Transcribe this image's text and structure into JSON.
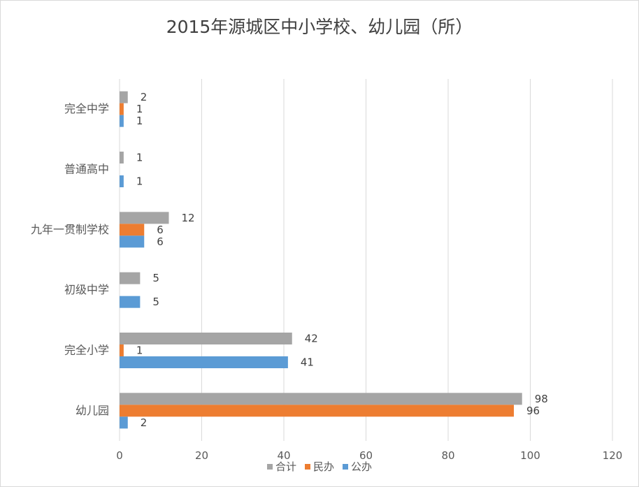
{
  "chart_data": {
    "type": "bar",
    "orientation": "horizontal",
    "title": "2015年源城区中小学校、幼儿园（所）",
    "xlabel": "",
    "ylabel": "",
    "xlim": [
      0,
      120
    ],
    "xticks": [
      "0",
      "20",
      "40",
      "60",
      "80",
      "100",
      "120"
    ],
    "grid": true,
    "legend_position": "bottom",
    "categories": [
      "完全中学",
      "普通高中",
      "九年一贯制学校",
      "初级中学",
      "完全小学",
      "幼儿园"
    ],
    "series": [
      {
        "name": "合计",
        "color": "#a5a5a5",
        "values": [
          2,
          1,
          12,
          5,
          42,
          98
        ]
      },
      {
        "name": "民办",
        "color": "#ed7d31",
        "values": [
          1,
          null,
          6,
          null,
          1,
          96
        ]
      },
      {
        "name": "公办",
        "color": "#5b9bd5",
        "values": [
          1,
          1,
          6,
          5,
          41,
          2
        ]
      }
    ]
  }
}
